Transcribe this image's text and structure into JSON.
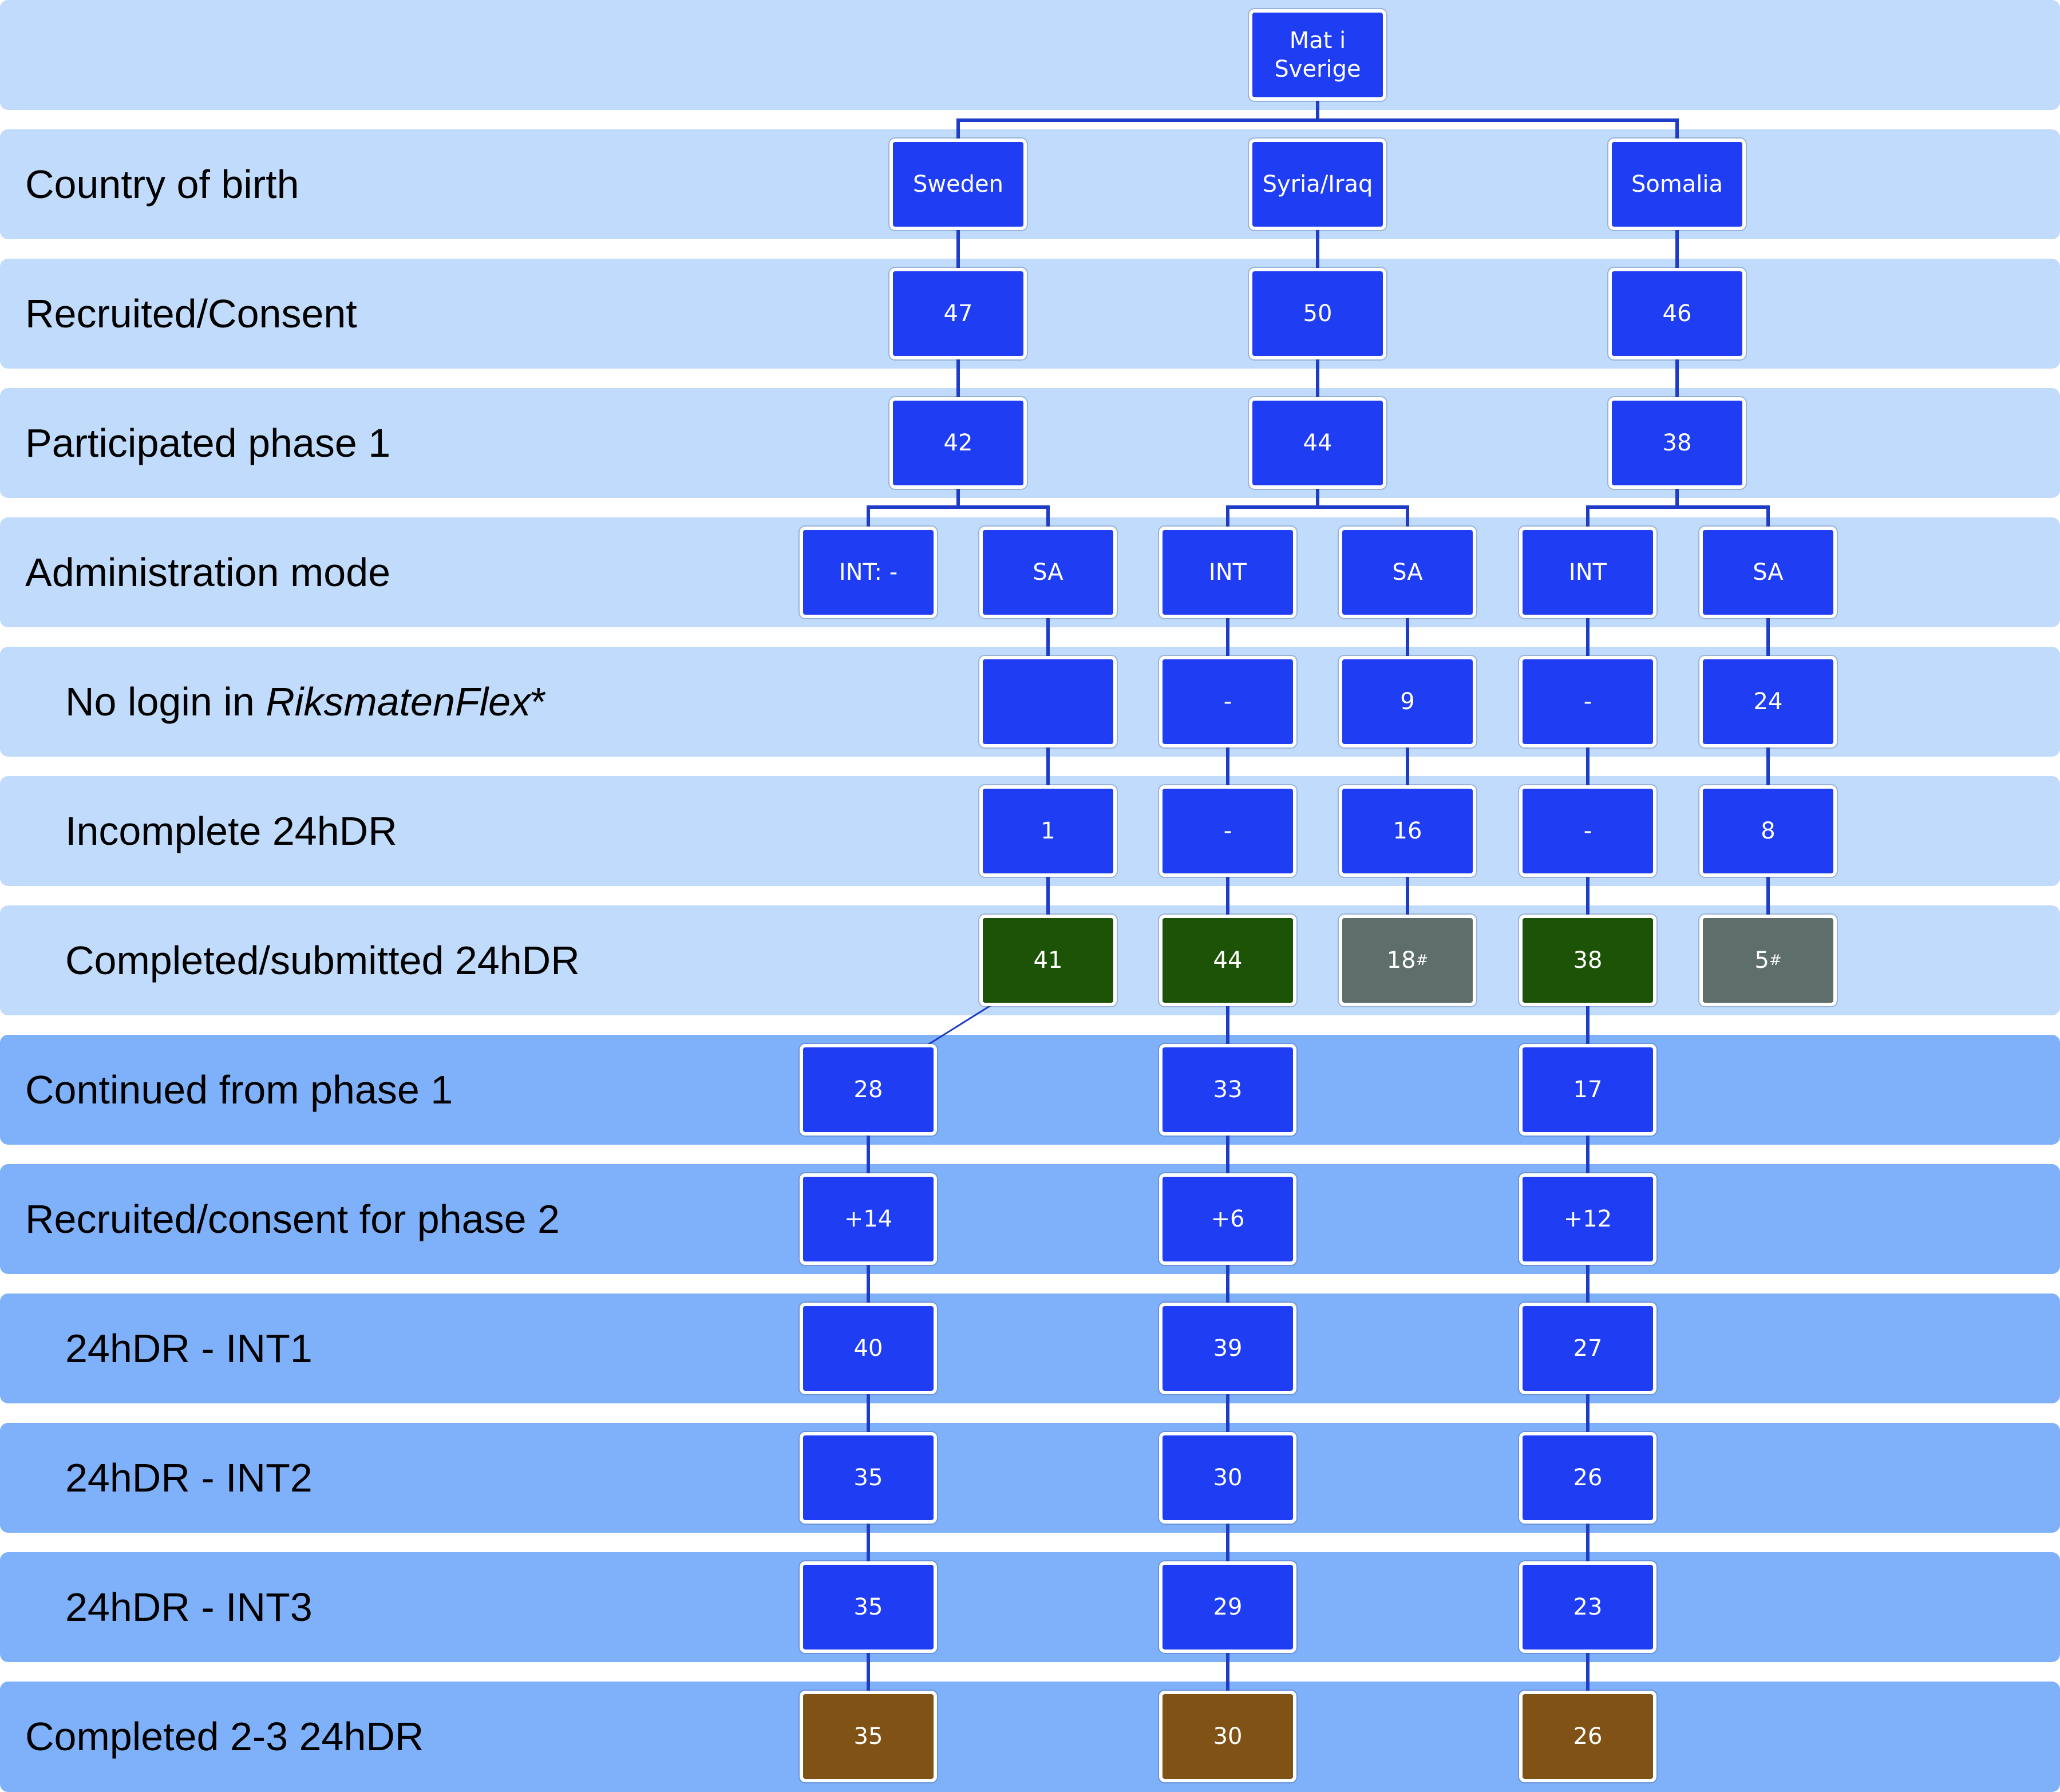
{
  "root": {
    "label": "Mat i\nSverige"
  },
  "rows": {
    "r0": {
      "label": ""
    },
    "r1": {
      "label": "Country of birth"
    },
    "r2": {
      "label": "Recruited/Consent"
    },
    "r3": {
      "label": "Participated phase 1"
    },
    "r4": {
      "label": "Administration mode"
    },
    "r5": {
      "label": "No login in ",
      "label_italic": "RiksmatenFlex",
      "label_suffix": "*"
    },
    "r6": {
      "label": "Incomplete 24hDR"
    },
    "r7": {
      "label": "Completed/submitted 24hDR"
    },
    "r8": {
      "label": "Continued from phase 1"
    },
    "r9": {
      "label": "Recruited/consent for phase 2"
    },
    "r10": {
      "label": "24hDR - INT1"
    },
    "r11": {
      "label": "24hDR - INT2"
    },
    "r12": {
      "label": "24hDR - INT3"
    },
    "r13": {
      "label": "Completed 2-3 24hDR"
    }
  },
  "nodes": {
    "sweden": "Sweden",
    "syria": "Syria/Iraq",
    "somalia": "Somalia",
    "sw_rec": "47",
    "sy_rec": "50",
    "so_rec": "46",
    "sw_part": "42",
    "sy_part": "44",
    "so_part": "38",
    "sw_int": "INT: -",
    "sw_sa": "SA",
    "sy_int": "INT",
    "sy_sa": "SA",
    "so_int": "INT",
    "so_sa": "SA",
    "sw_sa_nologin": "",
    "sy_int_nologin": "-",
    "sy_sa_nologin": "9",
    "so_int_nologin": "-",
    "so_sa_nologin": "24",
    "sw_sa_incomplete": "1",
    "sy_int_incomplete": "-",
    "sy_sa_incomplete": "16",
    "so_int_incomplete": "-",
    "so_sa_incomplete": "8",
    "sw_sa_completed": "41",
    "sy_int_completed": "44",
    "sy_sa_completed": "18",
    "sy_sa_completed_mark": "#",
    "so_int_completed": "38",
    "so_sa_completed": "5",
    "so_sa_completed_mark": "#",
    "sw_cont": "28",
    "sy_cont": "33",
    "so_cont": "17",
    "sw_new": "+14",
    "sy_new": "+6",
    "so_new": "+12",
    "sw_int1": "40",
    "sy_int1": "39",
    "so_int1": "27",
    "sw_int2": "35",
    "sy_int2": "30",
    "so_int2": "26",
    "sw_int3": "35",
    "sy_int3": "29",
    "so_int3": "23",
    "sw_done": "35",
    "sy_done": "30",
    "so_done": "26"
  },
  "colors": {
    "phase1_row": "#c0dbfb",
    "phase2_row": "#7fb1fb",
    "node_blue": "#1f3df2",
    "node_green": "#1c5307",
    "node_gray": "#5e6e6a",
    "node_brown": "#815215",
    "connector": "#1f3cc7"
  }
}
